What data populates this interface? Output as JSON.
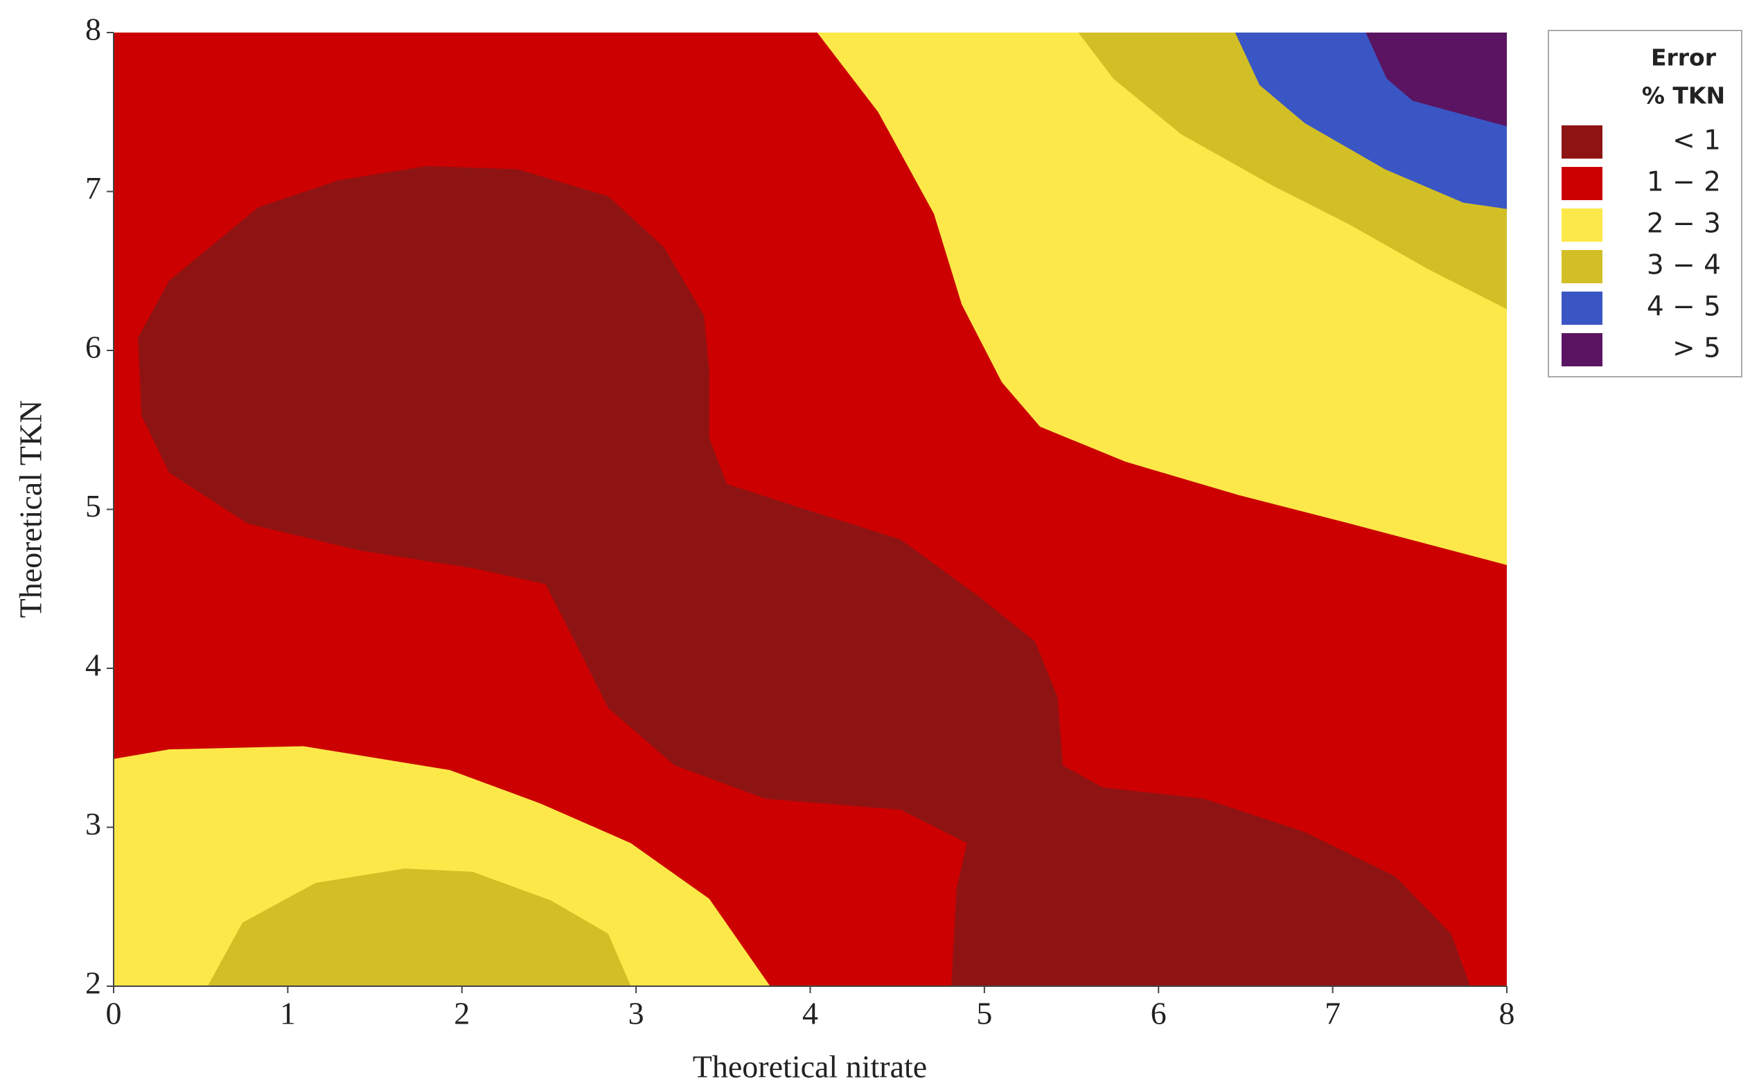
{
  "chart_data": {
    "type": "contour",
    "x_label": "Theoretical nitrate",
    "y_label": "Theoretical TKN",
    "xlim": [
      0,
      8
    ],
    "ylim": [
      2,
      8
    ],
    "xticks": [
      0,
      1,
      2,
      3,
      4,
      5,
      6,
      7,
      8
    ],
    "yticks": [
      2,
      3,
      4,
      5,
      6,
      7,
      8
    ],
    "legend_title": [
      "Error",
      "% TKN"
    ],
    "series": [
      {
        "name": "< 1",
        "color": "#8e1414",
        "regions": [
          {
            "x": [
              0.14,
              0.32,
              0.83,
              1.29,
              1.8,
              2.32,
              2.84,
              3.16,
              3.39,
              3.42,
              3.42,
              3.52,
              4.0,
              4.52,
              4.97,
              5.29,
              5.42,
              5.45,
              5.68,
              6.26,
              6.84,
              7.36,
              7.68,
              7.79,
              4.81,
              4.84,
              4.9,
              4.52,
              3.74,
              3.22,
              2.84,
              2.68,
              2.48,
              2.06,
              1.42,
              0.77,
              0.32,
              0.16
            ],
            "y": [
              6.08,
              6.44,
              6.9,
              7.07,
              7.16,
              7.14,
              6.97,
              6.65,
              6.22,
              5.87,
              5.45,
              5.16,
              4.99,
              4.81,
              4.45,
              4.17,
              3.82,
              3.39,
              3.25,
              3.18,
              2.97,
              2.69,
              2.33,
              2.0,
              2.0,
              2.61,
              2.9,
              3.11,
              3.18,
              3.39,
              3.75,
              4.1,
              4.53,
              4.63,
              4.74,
              4.91,
              5.23,
              5.59
            ]
          }
        ]
      },
      {
        "name": "1 − 2",
        "color": "#cc0000",
        "regions": [
          {
            "x": [
              0,
              8,
              8,
              0
            ],
            "y": [
              2,
              2,
              8,
              8
            ]
          }
        ]
      },
      {
        "name": "2 − 3",
        "color": "#fde84a",
        "regions": [
          {
            "x": [
              4.04,
              4.39,
              4.71,
              4.87,
              5.1,
              5.32,
              5.81,
              6.46,
              7.1,
              8,
              8
            ],
            "y": [
              8,
              7.5,
              6.86,
              6.29,
              5.8,
              5.52,
              5.3,
              5.09,
              4.91,
              4.65,
              8
            ]
          },
          {
            "x": [
              0,
              0.32,
              1.09,
              1.93,
              2.45,
              2.97,
              3.42,
              3.77,
              0
            ],
            "y": [
              3.43,
              3.49,
              3.51,
              3.36,
              3.15,
              2.9,
              2.55,
              2.0,
              2
            ]
          }
        ]
      },
      {
        "name": "3 − 4",
        "color": "#d2bf26",
        "regions": [
          {
            "x": [
              5.54,
              5.74,
              6.13,
              6.65,
              7.1,
              7.55,
              8,
              8
            ],
            "y": [
              8,
              7.71,
              7.36,
              7.04,
              6.79,
              6.51,
              6.26,
              8
            ]
          },
          {
            "x": [
              0.54,
              0.74,
              1.16,
              1.67,
              2.06,
              2.51,
              2.84,
              2.97
            ],
            "y": [
              2,
              2.4,
              2.65,
              2.74,
              2.72,
              2.54,
              2.33,
              2
            ]
          }
        ]
      },
      {
        "name": "4 − 5",
        "color": "#3a56c4",
        "regions": [
          {
            "x": [
              6.44,
              6.58,
              6.84,
              7.3,
              7.75,
              8,
              8
            ],
            "y": [
              8,
              7.67,
              7.43,
              7.14,
              6.93,
              6.89,
              8
            ]
          }
        ]
      },
      {
        "name": "> 5",
        "color": "#5a1462",
        "regions": [
          {
            "x": [
              7.19,
              7.31,
              7.46,
              8,
              8
            ],
            "y": [
              8,
              7.71,
              7.57,
              7.41,
              8
            ]
          }
        ]
      }
    ]
  }
}
